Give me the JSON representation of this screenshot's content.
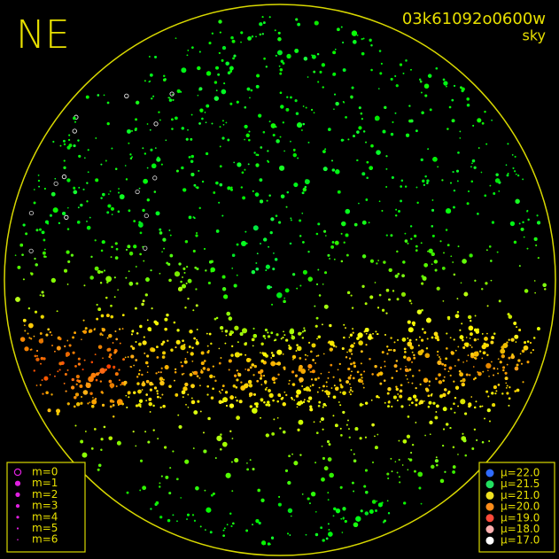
{
  "field_label": "NE",
  "frame_id": "03k61092o0600w",
  "frame_type": "sky",
  "magnitude_legend": [
    "m=0",
    "m=1",
    "m=2",
    "m=3",
    "m=4",
    "m=5",
    "m=6"
  ],
  "brightness_legend": [
    {
      "label": "μ=22.0",
      "color": "#2f6bff"
    },
    {
      "label": "μ=21.5",
      "color": "#22e060"
    },
    {
      "label": "μ=21.0",
      "color": "#f0e020"
    },
    {
      "label": "μ=20.0",
      "color": "#ff8c1a"
    },
    {
      "label": "μ=19.0",
      "color": "#ff4a3a"
    },
    {
      "label": "μ=18.0",
      "color": "#ffb0b0"
    },
    {
      "label": "μ=17.0",
      "color": "#ffffff"
    }
  ]
}
